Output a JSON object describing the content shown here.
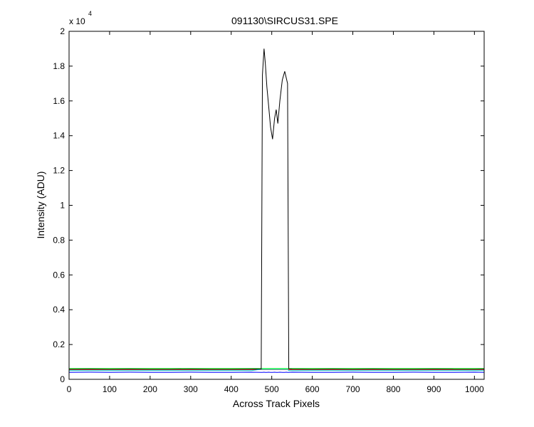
{
  "chart_data": {
    "type": "line",
    "title": "091130\\SIRCUS31.SPE",
    "xlabel": "Across Track Pixels",
    "ylabel": "Intensity (ADU)",
    "y_exponent_base": "x 10",
    "y_exponent": "4",
    "x": [
      0,
      50,
      100,
      150,
      200,
      250,
      300,
      350,
      400,
      450,
      474,
      477,
      481,
      484,
      488,
      492,
      497,
      502,
      507,
      511,
      515,
      520,
      526,
      532,
      536,
      539,
      542,
      550,
      600,
      650,
      700,
      750,
      800,
      850,
      900,
      950,
      1000,
      1024
    ],
    "series": [
      {
        "color": "#00ff00",
        "values": [
          0.062,
          0.062,
          0.062,
          0.062,
          0.062,
          0.062,
          0.062,
          0.062,
          0.062,
          0.062,
          0.062,
          0.062,
          0.062,
          0.062,
          0.062,
          0.062,
          0.062,
          0.062,
          0.062,
          0.062,
          0.062,
          0.062,
          0.062,
          0.062,
          0.062,
          0.062,
          0.062,
          0.062,
          0.062,
          0.062,
          0.062,
          0.062,
          0.062,
          0.062,
          0.062,
          0.062,
          0.062,
          0.062
        ]
      },
      {
        "color": "#ff0000",
        "values": [
          0.056,
          0.056,
          0.056,
          0.056,
          0.056,
          0.056,
          0.056,
          0.056,
          0.056,
          0.056,
          0.056,
          0.056,
          0.056,
          0.056,
          0.056,
          0.056,
          0.056,
          0.056,
          0.056,
          0.056,
          0.056,
          0.056,
          0.056,
          0.056,
          0.056,
          0.056,
          0.056,
          0.056,
          0.056,
          0.056,
          0.056,
          0.056,
          0.056,
          0.056,
          0.056,
          0.056,
          0.056,
          0.056
        ]
      },
      {
        "color": "#00cccc",
        "values": [
          0.05,
          0.05,
          0.05,
          0.05,
          0.05,
          0.05,
          0.05,
          0.05,
          0.05,
          0.05,
          0.058,
          0.058,
          0.058,
          0.058,
          0.058,
          0.058,
          0.058,
          0.058,
          0.058,
          0.058,
          0.058,
          0.058,
          0.058,
          0.058,
          0.058,
          0.058,
          0.05,
          0.05,
          0.05,
          0.05,
          0.05,
          0.05,
          0.05,
          0.05,
          0.05,
          0.05,
          0.05,
          0.05
        ]
      },
      {
        "color": "#0000ff",
        "values": [
          0.04,
          0.041,
          0.04,
          0.041,
          0.04,
          0.04,
          0.041,
          0.04,
          0.04,
          0.041,
          0.04,
          0.04,
          0.041,
          0.04,
          0.04,
          0.041,
          0.04,
          0.04,
          0.041,
          0.04,
          0.04,
          0.041,
          0.04,
          0.04,
          0.041,
          0.04,
          0.04,
          0.041,
          0.04,
          0.04,
          0.041,
          0.04,
          0.04,
          0.041,
          0.04,
          0.04,
          0.041,
          0.04
        ]
      },
      {
        "color": "#000000",
        "values": [
          0.058,
          0.059,
          0.058,
          0.059,
          0.058,
          0.058,
          0.059,
          0.058,
          0.058,
          0.059,
          0.06,
          1.75,
          1.9,
          1.82,
          1.68,
          1.58,
          1.45,
          1.38,
          1.5,
          1.55,
          1.47,
          1.6,
          1.72,
          1.77,
          1.73,
          1.7,
          0.06,
          0.059,
          0.058,
          0.059,
          0.058,
          0.059,
          0.058,
          0.058,
          0.059,
          0.058,
          0.058,
          0.059
        ]
      }
    ],
    "xlim": [
      0,
      1024
    ],
    "xticks": [
      0,
      100,
      200,
      300,
      400,
      500,
      600,
      700,
      800,
      900,
      1000
    ],
    "ylim": [
      0,
      2
    ],
    "yticks": [
      0,
      0.2,
      0.4,
      0.6,
      0.8,
      1,
      1.2,
      1.4,
      1.6,
      1.8,
      2
    ]
  }
}
